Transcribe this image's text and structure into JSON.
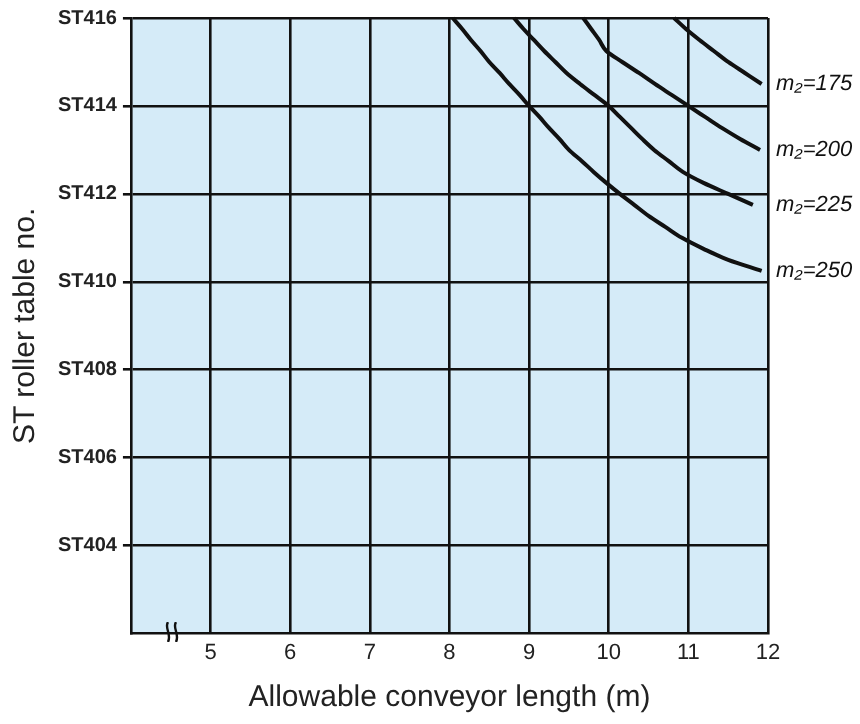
{
  "chart_data": {
    "type": "line",
    "orientation": "horizontal",
    "xlabel": "Allowable conveyor length (m)",
    "ylabel": "ST roller table no.",
    "categories": [
      "ST416",
      null,
      null,
      null,
      null,
      null,
      null,
      null,
      "ST414",
      null,
      null,
      null,
      null,
      null,
      null,
      null,
      "ST412",
      null,
      null,
      null,
      null,
      null,
      null,
      null,
      "ST410",
      null,
      null,
      null,
      null,
      null,
      null,
      null,
      "ST408",
      null,
      null,
      null,
      null,
      null,
      null,
      null,
      "ST406",
      null,
      null,
      null,
      null,
      null,
      null,
      null,
      "ST404",
      null,
      null,
      null,
      null,
      null,
      null,
      null,
      null
    ],
    "xlim": [
      4,
      12
    ],
    "xticks": [
      5,
      6,
      7,
      8,
      9,
      10,
      11,
      12
    ],
    "grid": true,
    "legend": false,
    "marker": "none",
    "line_style": "solid",
    "series": [
      {
        "name": "m₂=175",
        "color": "#111111",
        "values": [
          10.82,
          10.97,
          11.14,
          11.32,
          11.5,
          11.71,
          11.92,
          null,
          null,
          null,
          null,
          null,
          null,
          null,
          null,
          null,
          null,
          null,
          null,
          null,
          null,
          null,
          null,
          null,
          null,
          null,
          null,
          null,
          null,
          null,
          null,
          null,
          null,
          null,
          null,
          null,
          null,
          null,
          null,
          null,
          null,
          null,
          null,
          null,
          null,
          null,
          null,
          null,
          null,
          null,
          null,
          null,
          null,
          null,
          null,
          null,
          null
        ]
      },
      {
        "name": "m₂=200",
        "color": "#111111",
        "values": [
          9.68,
          9.78,
          9.88,
          9.97,
          10.17,
          10.38,
          10.58,
          10.79,
          11,
          11.21,
          11.42,
          11.65,
          11.9,
          null,
          null,
          null,
          null,
          null,
          null,
          null,
          null,
          null,
          null,
          null,
          null,
          null,
          null,
          null,
          null,
          null,
          null,
          null,
          null,
          null,
          null,
          null,
          null,
          null,
          null,
          null,
          null,
          null,
          null,
          null,
          null,
          null,
          null,
          null,
          null,
          null,
          null,
          null,
          null,
          null,
          null,
          null,
          null
        ]
      },
      {
        "name": "m₂=225",
        "color": "#111111",
        "values": [
          8.81,
          8.93,
          9.06,
          9.19,
          9.33,
          9.47,
          9.64,
          9.82,
          10,
          10.14,
          10.28,
          10.42,
          10.57,
          10.75,
          10.93,
          11.19,
          11.5,
          11.81,
          null,
          null,
          null,
          null,
          null,
          null,
          null,
          null,
          null,
          null,
          null,
          null,
          null,
          null,
          null,
          null,
          null,
          null,
          null,
          null,
          null,
          null,
          null,
          null,
          null,
          null,
          null,
          null,
          null,
          null,
          null,
          null,
          null,
          null,
          null,
          null,
          null,
          null,
          null
        ]
      },
      {
        "name": "m₂=250",
        "color": "#111111",
        "values": [
          8.04,
          8.16,
          8.27,
          8.39,
          8.5,
          8.63,
          8.75,
          8.88,
          9,
          9.13,
          9.25,
          9.38,
          9.5,
          9.66,
          9.81,
          9.97,
          10.14,
          10.32,
          10.5,
          10.71,
          10.92,
          11.19,
          11.5,
          11.92,
          null,
          null,
          null,
          null,
          null,
          null,
          null,
          null,
          null,
          null,
          null,
          null,
          null,
          null,
          null,
          null,
          null,
          null,
          null,
          null,
          null,
          null,
          null,
          null,
          null,
          null,
          null,
          null,
          null,
          null,
          null,
          null,
          null
        ]
      }
    ]
  }
}
